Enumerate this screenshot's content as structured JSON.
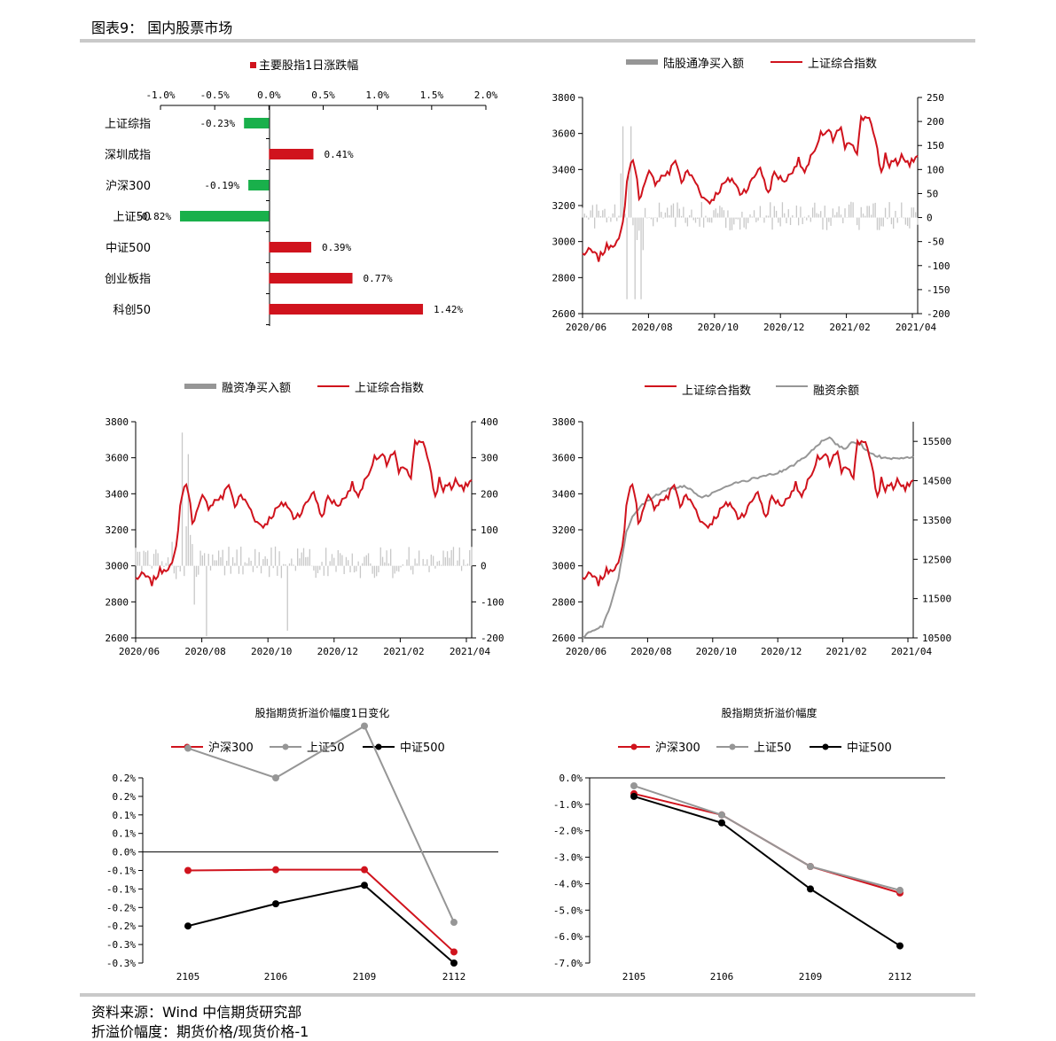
{
  "page": {
    "title": "图表9：  国内股票市场",
    "source": "资料来源：Wind 中信期货研究部",
    "note": "折溢价幅度：期货价格/现货价格-1"
  },
  "colors": {
    "red": "#d0131d",
    "green": "#19b04b",
    "gray": "#969696",
    "black": "#000000"
  },
  "chart_data": [
    {
      "id": "index_change",
      "type": "bar",
      "orientation": "horizontal",
      "legend": "主要股指1日涨跌幅",
      "categories": [
        "上证综指",
        "深圳成指",
        "沪深300",
        "上证50",
        "中证500",
        "创业板指",
        "科创50"
      ],
      "values": [
        -0.23,
        0.41,
        -0.19,
        -0.82,
        0.39,
        0.77,
        1.42
      ],
      "labels": [
        "-0.23%",
        "0.41%",
        "-0.19%",
        "-0.82%",
        "0.39%",
        "0.77%",
        "1.42%"
      ],
      "xticks": [
        "-1.0%",
        "-0.5%",
        "0.0%",
        "0.5%",
        "1.0%",
        "1.5%",
        "2.0%"
      ],
      "xlim": [
        -1.0,
        2.0
      ]
    },
    {
      "id": "northbound",
      "type": "bar+line",
      "legend": [
        "陆股通净买入额",
        "上证综合指数"
      ],
      "xticks": [
        "2020/06",
        "2020/08",
        "2020/10",
        "2020/12",
        "2021/02",
        "2021/04"
      ],
      "left_ticks": [
        "3800",
        "3600",
        "3400",
        "3200",
        "3000",
        "2800",
        "2600"
      ],
      "right_ticks": [
        "250",
        "200",
        "150",
        "100",
        "50",
        "0",
        "-50",
        "-100",
        "-150",
        "-200"
      ],
      "ylim_left": [
        2600,
        3800
      ],
      "ylim_right": [
        -200,
        250
      ]
    },
    {
      "id": "margin_buy",
      "type": "bar+line",
      "legend": [
        "融资净买入额",
        "上证综合指数"
      ],
      "xticks": [
        "2020/06",
        "2020/08",
        "2020/10",
        "2020/12",
        "2021/02",
        "2021/04"
      ],
      "left_ticks": [
        "3800",
        "3600",
        "3400",
        "3200",
        "3000",
        "2800",
        "2600"
      ],
      "right_ticks": [
        "400",
        "300",
        "200",
        "100",
        "0",
        "-100",
        "-200"
      ],
      "ylim_left": [
        2600,
        3800
      ],
      "ylim_right": [
        -200,
        400
      ]
    },
    {
      "id": "margin_balance",
      "type": "line",
      "legend": [
        "上证综合指数",
        "融资余额"
      ],
      "xticks": [
        "2020/06",
        "2020/08",
        "2020/10",
        "2020/12",
        "2021/02",
        "2021/04"
      ],
      "left_ticks": [
        "3800",
        "3600",
        "3400",
        "3200",
        "3000",
        "2800",
        "2600"
      ],
      "right_ticks": [
        "15500",
        "14500",
        "13500",
        "12500",
        "11500",
        "10500"
      ],
      "ylim_left": [
        2600,
        3800
      ],
      "ylim_right": [
        10500,
        16000
      ]
    },
    {
      "id": "basis_change",
      "type": "line",
      "title": "股指期货折溢价幅度1日变化",
      "legend": [
        "沪深300",
        "上证50",
        "中证500"
      ],
      "categories": [
        "2105",
        "2106",
        "2109",
        "2112"
      ],
      "series": [
        {
          "name": "沪深300",
          "values": [
            -0.05,
            -0.048,
            -0.048,
            -0.27
          ]
        },
        {
          "name": "上证50",
          "values": [
            0.28,
            0.2,
            0.34,
            -0.19
          ]
        },
        {
          "name": "中证500",
          "values": [
            -0.2,
            -0.14,
            -0.09,
            -0.3
          ]
        }
      ],
      "yticks": [
        "0.2%",
        "0.2%",
        "0.1%",
        "0.1%",
        "0.0%",
        "-0.1%",
        "-0.1%",
        "-0.2%",
        "-0.2%",
        "-0.3%",
        "-0.3%"
      ],
      "ylim": [
        -0.3,
        0.2
      ]
    },
    {
      "id": "basis_level",
      "type": "line",
      "title": "股指期货折溢价幅度",
      "legend": [
        "沪深300",
        "上证50",
        "中证500"
      ],
      "categories": [
        "2105",
        "2106",
        "2109",
        "2112"
      ],
      "series": [
        {
          "name": "沪深300",
          "values": [
            -0.6,
            -1.4,
            -3.35,
            -4.35
          ]
        },
        {
          "name": "上证50",
          "values": [
            -0.3,
            -1.4,
            -3.35,
            -4.25
          ]
        },
        {
          "name": "中证500",
          "values": [
            -0.7,
            -1.7,
            -4.2,
            -6.35
          ]
        }
      ],
      "yticks": [
        "0.0%",
        "-1.0%",
        "-2.0%",
        "-3.0%",
        "-4.0%",
        "-5.0%",
        "-6.0%",
        "-7.0%"
      ],
      "ylim": [
        -7.0,
        0.0
      ]
    }
  ]
}
